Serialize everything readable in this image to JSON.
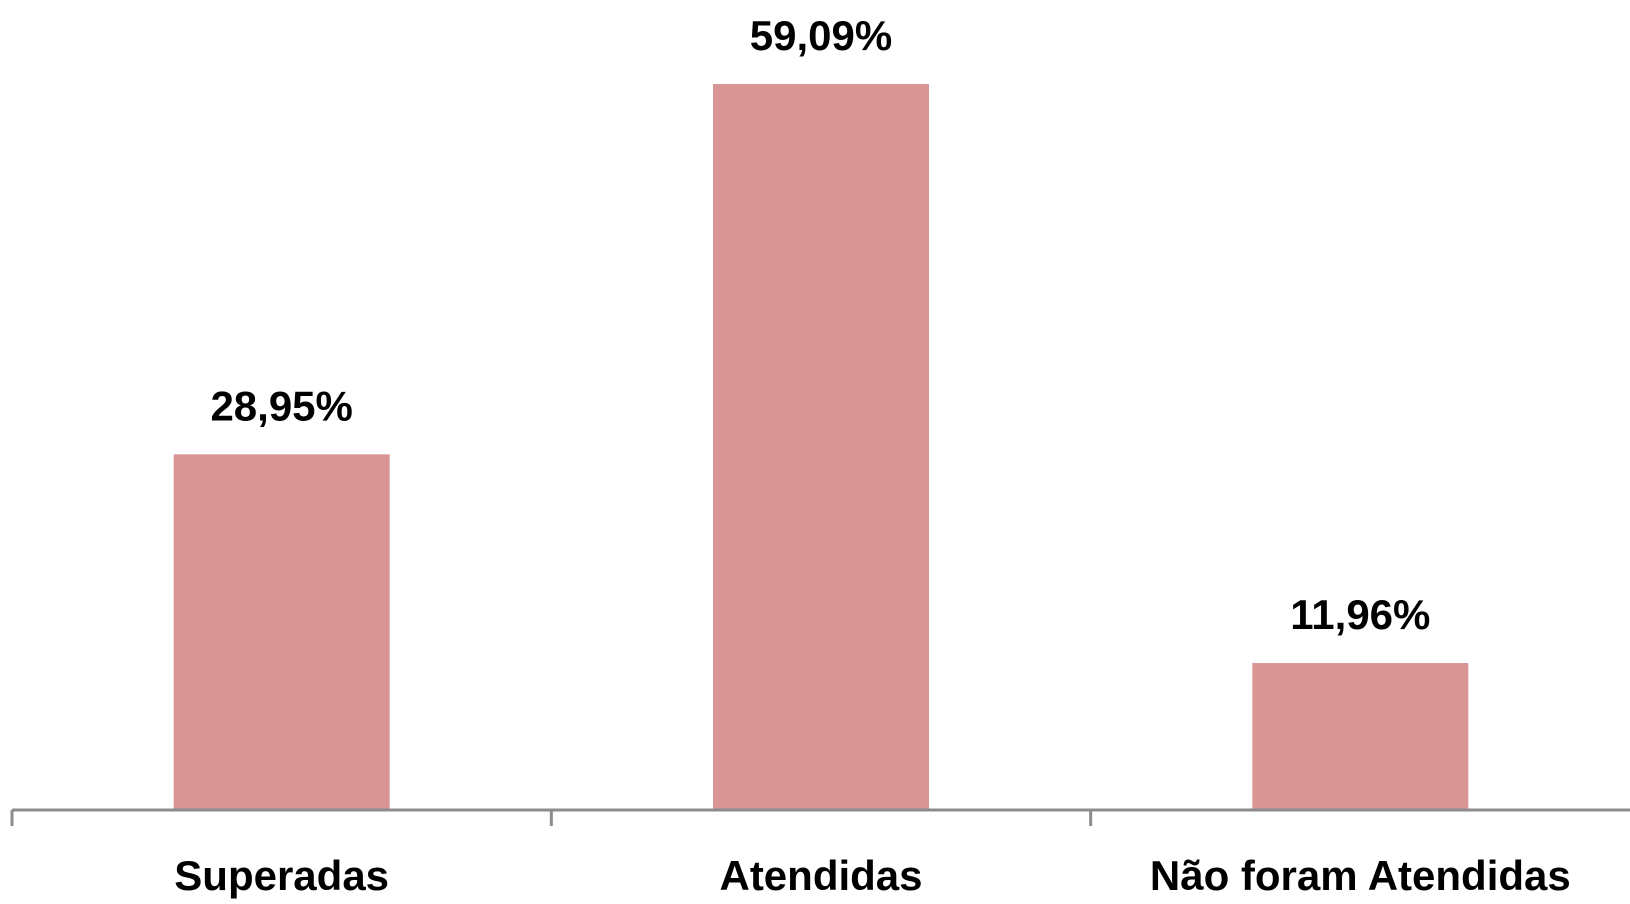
{
  "chart_data": {
    "type": "bar",
    "categories": [
      "Superadas",
      "Atendidas",
      "Não foram Atendidas"
    ],
    "values": [
      28.95,
      59.09,
      11.96
    ],
    "value_labels": [
      "28,95%",
      "59,09%",
      "11,96%"
    ],
    "ylim": [
      0,
      59.09
    ],
    "grid": false,
    "legend": "none",
    "title": "",
    "xlabel": "",
    "ylabel": ""
  },
  "colors": {
    "bar": "#d99594",
    "axis": "#8c8c8c",
    "text": "#000000"
  }
}
